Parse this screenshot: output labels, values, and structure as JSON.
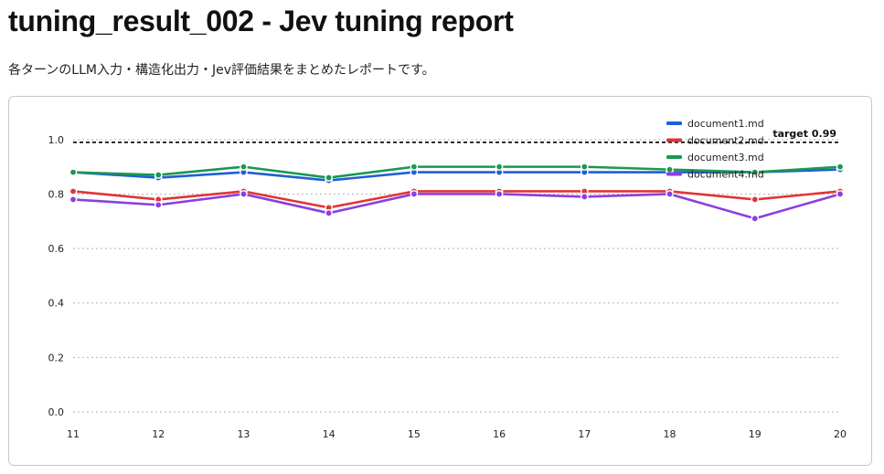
{
  "page": {
    "title": "tuning_result_002 - Jev tuning report",
    "subtitle": "各ターンのLLM入力・構造化出力・Jev評価結果をまとめたレポートです。"
  },
  "chart_data": {
    "type": "line",
    "x": [
      "11",
      "12",
      "13",
      "14",
      "15",
      "16",
      "17",
      "18",
      "19",
      "20"
    ],
    "ylim": [
      0,
      1.1
    ],
    "yticks": [
      "0.0",
      "0.2",
      "0.4",
      "0.6",
      "0.8",
      "1.0"
    ],
    "grid": "horizontal dotted",
    "legend_position": "top-right",
    "target": {
      "label": "target 0.99",
      "value": 0.99,
      "color": "#000000"
    },
    "series": [
      {
        "name": "document1.md",
        "color": "#1f5fd6",
        "values": [
          0.88,
          0.86,
          0.88,
          0.85,
          0.88,
          0.88,
          0.88,
          0.88,
          0.88,
          0.89
        ]
      },
      {
        "name": "document2.md",
        "color": "#e03535",
        "values": [
          0.81,
          0.78,
          0.81,
          0.75,
          0.81,
          0.81,
          0.81,
          0.81,
          0.78,
          0.81
        ]
      },
      {
        "name": "document3.md",
        "color": "#1a9850",
        "values": [
          0.88,
          0.87,
          0.9,
          0.86,
          0.9,
          0.9,
          0.9,
          0.89,
          0.88,
          0.9
        ]
      },
      {
        "name": "document4.md",
        "color": "#8a3fe0",
        "values": [
          0.78,
          0.76,
          0.8,
          0.73,
          0.8,
          0.8,
          0.79,
          0.8,
          0.71,
          0.8
        ]
      }
    ]
  }
}
